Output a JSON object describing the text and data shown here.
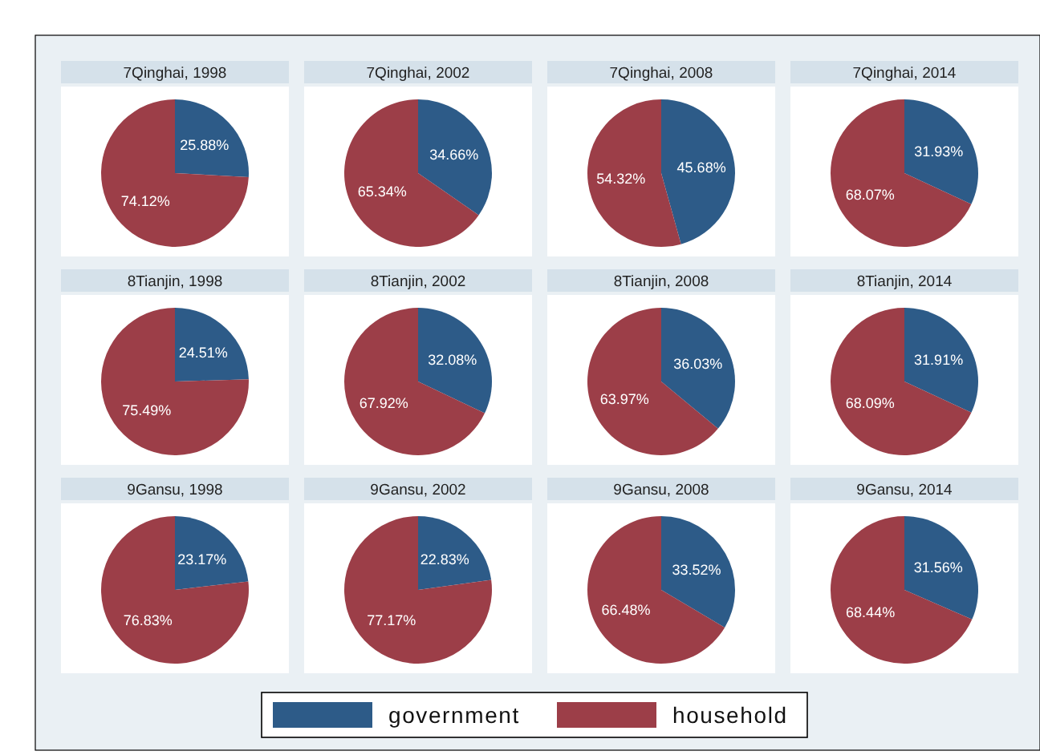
{
  "chart_data": [
    {
      "type": "pie",
      "title": "7Qinghai, 1998",
      "categories": [
        "government",
        "household"
      ],
      "values": [
        25.88,
        74.12
      ],
      "value_labels": [
        "25.88%",
        "74.12%"
      ],
      "colors": [
        "#2d5b88",
        "#9c3e48"
      ],
      "legend": "bottom"
    },
    {
      "type": "pie",
      "title": "7Qinghai, 2002",
      "categories": [
        null,
        null
      ],
      "values": [
        34.66,
        65.34
      ],
      "value_labels": [
        "34.66%",
        "65.34%"
      ],
      "colors": [
        "#2d5b88",
        "#9c3e48"
      ]
    },
    {
      "type": "pie",
      "title": "7Qinghai, 2008",
      "categories": [
        null,
        null
      ],
      "values": [
        45.68,
        54.32
      ],
      "value_labels": [
        "45.68%",
        "54.32%"
      ],
      "colors": [
        "#2d5b88",
        "#9c3e48"
      ]
    },
    {
      "type": "pie",
      "title": "7Qinghai, 2014",
      "categories": [
        null,
        null
      ],
      "values": [
        31.93,
        68.07
      ],
      "value_labels": [
        "31.93%",
        "68.07%"
      ],
      "colors": [
        "#2d5b88",
        "#9c3e48"
      ]
    },
    {
      "type": "pie",
      "title": "8Tianjin, 1998",
      "categories": [
        null,
        null
      ],
      "values": [
        24.51,
        75.49
      ],
      "value_labels": [
        "24.51%",
        "75.49%"
      ],
      "colors": [
        "#2d5b88",
        "#9c3e48"
      ]
    },
    {
      "type": "pie",
      "title": "8Tianjin, 2002",
      "categories": [
        null,
        null
      ],
      "values": [
        32.08,
        67.92
      ],
      "value_labels": [
        "32.08%",
        "67.92%"
      ],
      "colors": [
        "#2d5b88",
        "#9c3e48"
      ]
    },
    {
      "type": "pie",
      "title": "8Tianjin, 2008",
      "categories": [
        null,
        null
      ],
      "values": [
        36.03,
        63.97
      ],
      "value_labels": [
        "36.03%",
        "63.97%"
      ],
      "colors": [
        "#2d5b88",
        "#9c3e48"
      ]
    },
    {
      "type": "pie",
      "title": "8Tianjin, 2014",
      "categories": [
        null,
        null
      ],
      "values": [
        31.91,
        68.09
      ],
      "value_labels": [
        "31.91%",
        "68.09%"
      ],
      "colors": [
        "#2d5b88",
        "#9c3e48"
      ]
    },
    {
      "type": "pie",
      "title": "9Gansu, 1998",
      "categories": [
        null,
        null
      ],
      "values": [
        23.17,
        76.83
      ],
      "value_labels": [
        "23.17%",
        "76.83%"
      ],
      "colors": [
        "#2d5b88",
        "#9c3e48"
      ]
    },
    {
      "type": "pie",
      "title": "9Gansu, 2002",
      "categories": [
        null,
        null
      ],
      "values": [
        22.83,
        77.17
      ],
      "value_labels": [
        "22.83%",
        "77.17%"
      ],
      "colors": [
        "#2d5b88",
        "#9c3e48"
      ]
    },
    {
      "type": "pie",
      "title": "9Gansu, 2008",
      "categories": [
        null,
        null
      ],
      "values": [
        33.52,
        66.48
      ],
      "value_labels": [
        "33.52%",
        "66.48%"
      ],
      "colors": [
        "#2d5b88",
        "#9c3e48"
      ]
    },
    {
      "type": "pie",
      "title": "9Gansu, 2014",
      "categories": [
        null,
        null
      ],
      "values": [
        31.56,
        68.44
      ],
      "value_labels": [
        "31.56%",
        "68.44%"
      ],
      "colors": [
        "#2d5b88",
        "#9c3e48"
      ]
    }
  ]
}
